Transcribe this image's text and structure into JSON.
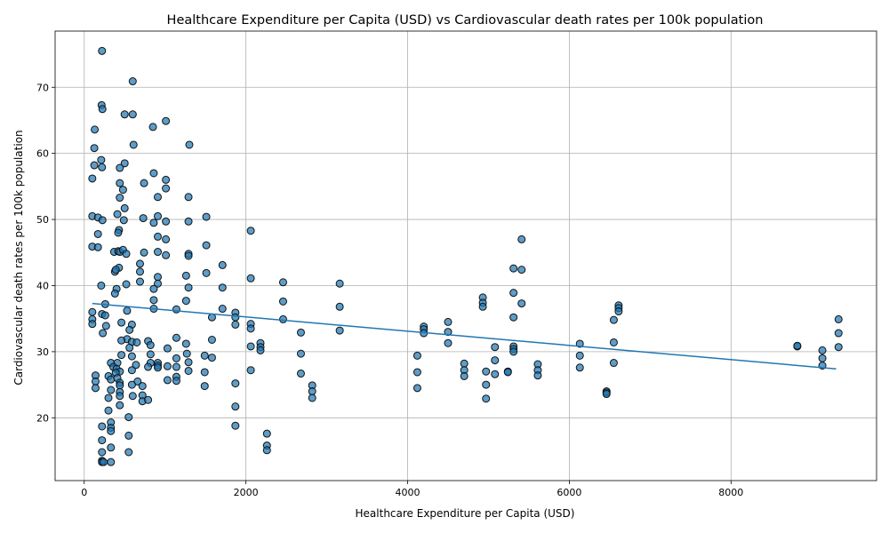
{
  "chart_data": {
    "type": "scatter",
    "title": "Healthcare Expenditure per Capita (USD) vs Cardiovascular death rates per 100k population",
    "xlabel": "Healthcare Expenditure per Capita (USD)",
    "ylabel": "Cardiovascular death rates per 100k population",
    "xlim": [
      -360,
      9800
    ],
    "ylim": [
      10.5,
      78.5
    ],
    "xticks": [
      0,
      2000,
      4000,
      6000,
      8000
    ],
    "yticks": [
      20,
      30,
      40,
      50,
      60,
      70
    ],
    "grid": true,
    "colors": {
      "marker": "#1f77b4",
      "edge": "#111111",
      "trend": "#1f77b4"
    },
    "trendline": {
      "x": [
        100,
        9300
      ],
      "y": [
        37.3,
        27.4
      ]
    },
    "points": [
      [
        220,
        75.5
      ],
      [
        600,
        70.9
      ],
      [
        215,
        67.3
      ],
      [
        225,
        66.7
      ],
      [
        500,
        65.9
      ],
      [
        600,
        65.9
      ],
      [
        1010,
        64.9
      ],
      [
        130,
        63.6
      ],
      [
        850,
        64.0
      ],
      [
        1300,
        61.3
      ],
      [
        610,
        61.3
      ],
      [
        125,
        60.8
      ],
      [
        210,
        59.0
      ],
      [
        500,
        58.5
      ],
      [
        125,
        58.2
      ],
      [
        220,
        57.9
      ],
      [
        440,
        57.8
      ],
      [
        860,
        57.0
      ],
      [
        100,
        56.2
      ],
      [
        1010,
        56.0
      ],
      [
        440,
        55.5
      ],
      [
        740,
        55.5
      ],
      [
        480,
        54.5
      ],
      [
        1010,
        54.7
      ],
      [
        440,
        53.3
      ],
      [
        910,
        53.4
      ],
      [
        1290,
        53.4
      ],
      [
        500,
        51.7
      ],
      [
        410,
        50.8
      ],
      [
        1510,
        50.4
      ],
      [
        100,
        50.5
      ],
      [
        170,
        50.3
      ],
      [
        910,
        50.5
      ],
      [
        730,
        50.2
      ],
      [
        225,
        49.9
      ],
      [
        490,
        49.9
      ],
      [
        1010,
        49.7
      ],
      [
        860,
        49.5
      ],
      [
        1290,
        49.7
      ],
      [
        430,
        48.4
      ],
      [
        420,
        48.0
      ],
      [
        2060,
        48.3
      ],
      [
        170,
        47.8
      ],
      [
        910,
        47.4
      ],
      [
        5410,
        47.0
      ],
      [
        1010,
        47.0
      ],
      [
        1510,
        46.1
      ],
      [
        100,
        45.9
      ],
      [
        170,
        45.8
      ],
      [
        370,
        45.1
      ],
      [
        420,
        45.2
      ],
      [
        440,
        45.1
      ],
      [
        480,
        45.4
      ],
      [
        520,
        44.8
      ],
      [
        740,
        45.0
      ],
      [
        910,
        45.1
      ],
      [
        1010,
        44.6
      ],
      [
        1290,
        44.8
      ],
      [
        1290,
        44.5
      ],
      [
        1710,
        43.1
      ],
      [
        690,
        43.3
      ],
      [
        430,
        42.7
      ],
      [
        380,
        42.1
      ],
      [
        690,
        42.1
      ],
      [
        390,
        42.4
      ],
      [
        5310,
        42.6
      ],
      [
        5410,
        42.4
      ],
      [
        1510,
        41.9
      ],
      [
        910,
        41.3
      ],
      [
        1260,
        41.5
      ],
      [
        2060,
        41.1
      ],
      [
        2460,
        40.5
      ],
      [
        3160,
        40.3
      ],
      [
        210,
        40.0
      ],
      [
        520,
        40.2
      ],
      [
        690,
        40.6
      ],
      [
        910,
        40.3
      ],
      [
        860,
        39.5
      ],
      [
        1290,
        39.7
      ],
      [
        1710,
        39.7
      ],
      [
        400,
        39.5
      ],
      [
        380,
        38.8
      ],
      [
        4930,
        38.2
      ],
      [
        5310,
        38.9
      ],
      [
        860,
        37.8
      ],
      [
        1260,
        37.7
      ],
      [
        2460,
        37.6
      ],
      [
        4930,
        37.4
      ],
      [
        5410,
        37.3
      ],
      [
        260,
        37.2
      ],
      [
        6610,
        37.0
      ],
      [
        6610,
        36.6
      ],
      [
        4930,
        36.8
      ],
      [
        3160,
        36.8
      ],
      [
        1710,
        36.5
      ],
      [
        860,
        36.5
      ],
      [
        530,
        36.2
      ],
      [
        1140,
        36.4
      ],
      [
        6610,
        36.1
      ],
      [
        100,
        36.0
      ],
      [
        220,
        35.7
      ],
      [
        260,
        35.5
      ],
      [
        1870,
        35.9
      ],
      [
        1870,
        35.2
      ],
      [
        1580,
        35.2
      ],
      [
        5310,
        35.2
      ],
      [
        9330,
        34.9
      ],
      [
        2460,
        34.9
      ],
      [
        6550,
        34.8
      ],
      [
        4500,
        34.5
      ],
      [
        100,
        34.9
      ],
      [
        460,
        34.4
      ],
      [
        590,
        34.1
      ],
      [
        2060,
        34.2
      ],
      [
        100,
        34.2
      ],
      [
        1870,
        34.1
      ],
      [
        270,
        33.9
      ],
      [
        4200,
        33.8
      ],
      [
        4200,
        33.4
      ],
      [
        2060,
        33.5
      ],
      [
        560,
        33.3
      ],
      [
        3160,
        33.2
      ],
      [
        230,
        32.8
      ],
      [
        2680,
        32.9
      ],
      [
        4500,
        33.0
      ],
      [
        9330,
        32.8
      ],
      [
        4200,
        32.8
      ],
      [
        1140,
        32.1
      ],
      [
        530,
        31.9
      ],
      [
        1580,
        31.8
      ],
      [
        460,
        31.7
      ],
      [
        790,
        31.6
      ],
      [
        590,
        31.5
      ],
      [
        650,
        31.4
      ],
      [
        6550,
        31.4
      ],
      [
        2180,
        31.3
      ],
      [
        4500,
        31.3
      ],
      [
        1260,
        31.2
      ],
      [
        6130,
        31.2
      ],
      [
        820,
        31.0
      ],
      [
        5310,
        30.8
      ],
      [
        8820,
        30.8
      ],
      [
        8820,
        30.9
      ],
      [
        2060,
        30.8
      ],
      [
        5080,
        30.7
      ],
      [
        560,
        30.6
      ],
      [
        2180,
        30.7
      ],
      [
        1030,
        30.5
      ],
      [
        9330,
        30.7
      ],
      [
        5310,
        30.4
      ],
      [
        2180,
        30.2
      ],
      [
        9130,
        30.2
      ],
      [
        5310,
        30.0
      ],
      [
        1270,
        29.7
      ],
      [
        820,
        29.6
      ],
      [
        1490,
        29.4
      ],
      [
        2680,
        29.7
      ],
      [
        4120,
        29.4
      ],
      [
        460,
        29.5
      ],
      [
        590,
        29.3
      ],
      [
        6130,
        29.4
      ],
      [
        1580,
        29.1
      ],
      [
        1140,
        29.0
      ],
      [
        9130,
        29.0
      ],
      [
        5080,
        28.7
      ],
      [
        1290,
        28.4
      ],
      [
        820,
        28.3
      ],
      [
        910,
        28.3
      ],
      [
        330,
        28.3
      ],
      [
        410,
        28.3
      ],
      [
        640,
        28.0
      ],
      [
        4700,
        28.2
      ],
      [
        5610,
        28.1
      ],
      [
        6550,
        28.3
      ],
      [
        1140,
        27.7
      ],
      [
        1030,
        27.8
      ],
      [
        910,
        27.9
      ],
      [
        790,
        27.7
      ],
      [
        910,
        27.6
      ],
      [
        360,
        27.7
      ],
      [
        400,
        27.4
      ],
      [
        6130,
        27.6
      ],
      [
        9130,
        27.9
      ],
      [
        2060,
        27.2
      ],
      [
        4700,
        27.2
      ],
      [
        4970,
        27.0
      ],
      [
        5610,
        27.2
      ],
      [
        5240,
        27.0
      ],
      [
        5240,
        26.9
      ],
      [
        1290,
        27.1
      ],
      [
        1490,
        26.9
      ],
      [
        4120,
        26.9
      ],
      [
        440,
        27.0
      ],
      [
        390,
        26.8
      ],
      [
        590,
        27.2
      ],
      [
        2680,
        26.7
      ],
      [
        5080,
        26.6
      ],
      [
        4700,
        26.3
      ],
      [
        5610,
        26.4
      ],
      [
        1140,
        26.2
      ],
      [
        300,
        26.3
      ],
      [
        140,
        26.4
      ],
      [
        330,
        25.8
      ],
      [
        410,
        26.0
      ],
      [
        140,
        25.5
      ],
      [
        660,
        25.5
      ],
      [
        1140,
        25.6
      ],
      [
        1030,
        25.7
      ],
      [
        440,
        25.3
      ],
      [
        440,
        24.9
      ],
      [
        590,
        25.0
      ],
      [
        1870,
        25.2
      ],
      [
        4970,
        25.0
      ],
      [
        2820,
        24.9
      ],
      [
        2820,
        24.0
      ],
      [
        1490,
        24.8
      ],
      [
        720,
        24.8
      ],
      [
        4120,
        24.5
      ],
      [
        140,
        24.5
      ],
      [
        330,
        24.2
      ],
      [
        440,
        23.9
      ],
      [
        6460,
        24.0
      ],
      [
        6460,
        23.8
      ],
      [
        6460,
        23.6
      ],
      [
        440,
        23.3
      ],
      [
        720,
        23.4
      ],
      [
        600,
        23.3
      ],
      [
        300,
        23.0
      ],
      [
        2820,
        23.0
      ],
      [
        4970,
        22.9
      ],
      [
        720,
        22.5
      ],
      [
        790,
        22.7
      ],
      [
        440,
        21.9
      ],
      [
        1870,
        21.7
      ],
      [
        300,
        21.1
      ],
      [
        550,
        20.1
      ],
      [
        330,
        19.3
      ],
      [
        330,
        18.5
      ],
      [
        330,
        18.0
      ],
      [
        220,
        18.7
      ],
      [
        1870,
        18.8
      ],
      [
        2260,
        17.6
      ],
      [
        550,
        17.3
      ],
      [
        220,
        16.6
      ],
      [
        2260,
        15.8
      ],
      [
        330,
        15.5
      ],
      [
        2260,
        15.1
      ],
      [
        220,
        14.8
      ],
      [
        550,
        14.8
      ],
      [
        220,
        13.5
      ],
      [
        220,
        13.3
      ],
      [
        240,
        13.3
      ],
      [
        330,
        13.3
      ]
    ]
  }
}
